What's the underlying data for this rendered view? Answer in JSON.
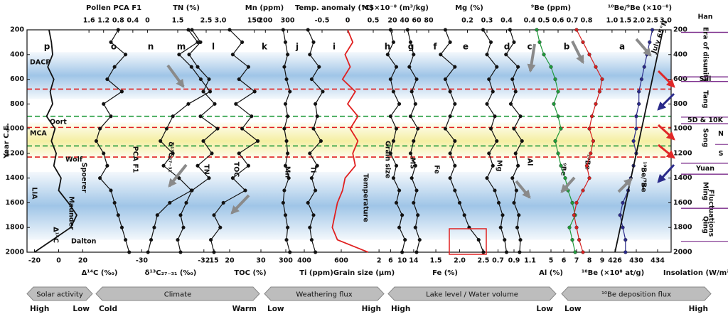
{
  "figure": {
    "ylabel": "Year C.E.",
    "ylim": [
      200,
      2000
    ],
    "yticks": [
      200,
      400,
      600,
      800,
      1000,
      1200,
      1400,
      1600,
      1800,
      2000
    ],
    "years": [
      200,
      300,
      400,
      500,
      600,
      700,
      800,
      900,
      1000,
      1100,
      1200,
      1300,
      1400,
      1500,
      1600,
      1700,
      1800,
      1900,
      2000
    ],
    "bands": [
      {
        "start": 380,
        "end": 760,
        "color": "#8fbbe3"
      },
      {
        "start": 950,
        "end": 1250,
        "color": "#f3ec93"
      },
      {
        "start": 1350,
        "end": 1900,
        "color": "#8fbbe3"
      }
    ],
    "dashed_lines": [
      {
        "year": 680,
        "color": "#e02020"
      },
      {
        "year": 900,
        "color": "#1f9a3a"
      },
      {
        "year": 990,
        "color": "#e02020"
      },
      {
        "year": 1140,
        "color": "#1f9a3a"
      },
      {
        "year": 1230,
        "color": "#e02020"
      }
    ],
    "annotations": [
      "DACP",
      "MCA",
      "Oort",
      "Wolf",
      "Spoerer",
      "Maunder",
      "Dalton",
      "LIA",
      "Fluctuations",
      "July 65°N",
      "?"
    ],
    "eras": [
      {
        "name": "Han",
        "start": -25,
        "end": 220
      },
      {
        "name": "Era of disunity",
        "start": 220,
        "end": 581
      },
      {
        "name": "Sui",
        "start": 581,
        "end": 618
      },
      {
        "name": "Tang",
        "start": 618,
        "end": 907
      },
      {
        "name": "5D & 10K",
        "start": 907,
        "end": 960
      },
      {
        "name": "Song",
        "start": 960,
        "end": 1279,
        "parts": [
          {
            "name": "N",
            "start": 960,
            "end": 1127
          },
          {
            "name": "S",
            "start": 1127,
            "end": 1279
          }
        ]
      },
      {
        "name": "Yuan",
        "start": 1279,
        "end": 1368
      },
      {
        "name": "Ming",
        "start": 1368,
        "end": 1644
      },
      {
        "name": "Qing",
        "start": 1644,
        "end": 1912
      }
    ],
    "flux": [
      {
        "name": "Solar activity",
        "left": "High",
        "right": "Low"
      },
      {
        "name": "Climate",
        "left": "Cold",
        "right": "Warm"
      },
      {
        "name": "Weathering flux",
        "left": "Low",
        "right": "High"
      },
      {
        "name": "Lake level / Water volume",
        "left": "High",
        "right": "Low"
      },
      {
        "name": "¹⁰Be deposition flux",
        "left": "Low",
        "right": "High"
      }
    ]
  },
  "chart_data": [
    {
      "type": "line",
      "letter": "p",
      "label": "Δ¹⁴C",
      "axis_title": "Δ¹⁴C (‰)",
      "axis_side": "bottom",
      "xlim": [
        -25,
        25
      ],
      "xticks": [
        -20,
        0,
        20
      ],
      "color": "#111111",
      "markers": false,
      "values": [
        -8,
        -6,
        -5,
        -9,
        -4,
        -7,
        -5,
        -10,
        -3,
        -6,
        -2,
        -4,
        2,
        0,
        8,
        15,
        10,
        -5,
        -20
      ]
    },
    {
      "type": "line",
      "letter": "o",
      "label": "PCA F1",
      "axis_title": "Pollen PCA F1",
      "axis_side": "top",
      "xlim": [
        1.7,
        -0.05
      ],
      "xticks": [
        1.6,
        1.2,
        0.8,
        0.4,
        0
      ],
      "color": "#111111",
      "markers": true,
      "values": [
        0.8,
        1.0,
        0.6,
        0.9,
        1.1,
        0.7,
        1.2,
        1.0,
        1.3,
        1.4,
        1.2,
        1.1,
        1.3,
        1.0,
        0.9,
        0.8,
        0.7,
        0.6,
        0.5
      ]
    },
    {
      "type": "line",
      "letter": "n",
      "label": "δ¹³C₂₇₋₃₁",
      "axis_title": "δ¹³C₂₇₋₃₁ (‰)",
      "axis_side": "bottom",
      "xlim": [
        -29.6,
        -32.6
      ],
      "xticks": [
        -30,
        -32
      ],
      "color": "#111111",
      "markers": true,
      "values": [
        -31.5,
        -31.8,
        -31.2,
        -31.6,
        -31.9,
        -32.2,
        -31.5,
        -31.0,
        -30.8,
        -30.6,
        -31.0,
        -30.7,
        -31.2,
        -31.6,
        -30.9,
        -30.5,
        -30.4,
        -30.3,
        -30.2
      ]
    },
    {
      "type": "line",
      "letter": "m",
      "label": "TN",
      "axis_title": "TN (%)",
      "axis_side": "top",
      "xlim": [
        0.9,
        3.4
      ],
      "xticks": [
        1.5,
        2.5,
        {
          "value": 3,
          "label": "3.0"
        }
      ],
      "color": "#111111",
      "markers": true,
      "values": [
        2.0,
        2.3,
        1.9,
        2.2,
        2.6,
        2.4,
        2.8,
        2.3,
        2.9,
        2.4,
        2.7,
        2.2,
        2.6,
        2.0,
        1.8,
        1.6,
        1.7,
        1.5,
        1.6
      ]
    },
    {
      "type": "line",
      "letter": "l",
      "label": "TOC",
      "axis_title": "TOC (%)",
      "axis_side": "bottom",
      "xlim": [
        10,
        35
      ],
      "xticks": [
        15,
        20,
        30
      ],
      "color": "#111111",
      "markers": true,
      "values": [
        20,
        24,
        21,
        26,
        23,
        28,
        22,
        27,
        24,
        29,
        23,
        26,
        21,
        25,
        18,
        15,
        17,
        14,
        15
      ]
    },
    {
      "type": "line",
      "letter": "k",
      "label": "Mn",
      "axis_title": "Mn (ppm)",
      "axis_side": "top",
      "xlim": [
        100,
        330
      ],
      "xticks": [
        150,
        200,
        300
      ],
      "color": "#111111",
      "markers": true,
      "values": [
        280,
        290,
        300,
        285,
        295,
        310,
        290,
        300,
        285,
        295,
        300,
        290,
        305,
        285,
        280,
        290,
        300,
        295,
        310
      ]
    },
    {
      "type": "line",
      "letter": "j",
      "label": "Ti",
      "axis_title": "Ti (ppm)",
      "axis_side": "bottom",
      "xlim": [
        250,
        650
      ],
      "xticks": [
        300,
        400,
        600
      ],
      "color": "#111111",
      "markers": true,
      "values": [
        420,
        450,
        430,
        480,
        440,
        500,
        460,
        470,
        450,
        490,
        430,
        470,
        440,
        460,
        420,
        450,
        430,
        440,
        460
      ]
    },
    {
      "type": "line",
      "letter": "i",
      "label": "Temperature",
      "axis_title": "Temp. anomaly (°C)",
      "axis_side": "top",
      "xlim": [
        -0.75,
        0.75
      ],
      "xticks": [
        -0.5,
        0,
        0.5
      ],
      "color": "#e02020",
      "markers": false,
      "values": [
        0,
        0.1,
        -0.05,
        0.05,
        -0.1,
        0.15,
        0,
        0.2,
        0.05,
        0.2,
        0.1,
        0.15,
        -0.05,
        -0.1,
        -0.2,
        -0.25,
        -0.3,
        -0.2,
        0.4
      ]
    },
    {
      "type": "line",
      "letter": "h",
      "label": "Grain size",
      "axis_title": "Grain size (µm)",
      "axis_side": "bottom",
      "xlim": [
        0,
        16
      ],
      "xticks": [
        2,
        6,
        10,
        14
      ],
      "color": "#111111",
      "markers": true,
      "values": [
        6,
        7,
        5,
        8,
        6,
        7,
        9,
        6,
        8,
        7,
        6,
        8,
        7,
        9,
        8,
        10,
        9,
        11,
        10
      ]
    },
    {
      "type": "line",
      "letter": "g",
      "label": "MS",
      "axis_title": "MS×10⁻⁸ (m³/kg)",
      "axis_side": "top",
      "xlim": [
        0,
        100
      ],
      "xticks": [
        20,
        40,
        60,
        80
      ],
      "color": "#111111",
      "markers": true,
      "values": [
        45,
        50,
        55,
        48,
        60,
        52,
        58,
        50,
        62,
        55,
        50,
        58,
        52,
        60,
        55,
        62,
        58,
        65,
        60
      ]
    },
    {
      "type": "line",
      "letter": "f",
      "label": "Fe",
      "axis_title": "Fe (%)",
      "axis_side": "bottom",
      "xlim": [
        1.2,
        2.8
      ],
      "xticks": [
        1.5,
        {
          "value": 2,
          "label": "2.0"
        },
        2.5
      ],
      "color": "#111111",
      "markers": true,
      "values": [
        1.7,
        1.8,
        1.6,
        1.9,
        1.7,
        1.8,
        1.9,
        1.8,
        1.7,
        1.9,
        1.8,
        1.9,
        1.8,
        1.9,
        2.0,
        2.1,
        2.2,
        2.4,
        2.5
      ]
    },
    {
      "type": "line",
      "letter": "e",
      "label": "Mg",
      "axis_title": "Mg (%)",
      "axis_side": "top",
      "xlim": [
        0.1,
        0.5
      ],
      "xticks": [
        0.2,
        0.3,
        0.4
      ],
      "color": "#111111",
      "markers": true,
      "values": [
        0.28,
        0.32,
        0.3,
        0.35,
        0.31,
        0.33,
        0.3,
        0.34,
        0.32,
        0.35,
        0.31,
        0.33,
        0.3,
        0.34,
        0.36,
        0.38,
        0.37,
        0.39,
        0.4
      ]
    },
    {
      "type": "line",
      "letter": "d",
      "label": "Al",
      "axis_title": "Al (%)",
      "axis_side": "bottom",
      "xlim": [
        0.5,
        1.3
      ],
      "xticks": [
        0.7,
        0.9,
        1.1
      ],
      "color": "#111111",
      "markers": true,
      "values": [
        0.85,
        0.9,
        0.8,
        0.95,
        0.88,
        0.92,
        0.86,
        0.98,
        0.9,
        1.0,
        0.92,
        0.95,
        0.88,
        0.93,
        0.9,
        0.96,
        0.94,
        0.98,
        0.97
      ]
    },
    {
      "type": "line",
      "letter": "c",
      "label": "⁹Be",
      "axis_title": "⁹Be (ppm)",
      "axis_side": "top",
      "xlim": [
        0.3,
        0.9
      ],
      "xticks": [
        0.4,
        0.5,
        0.6,
        0.7,
        0.8
      ],
      "color": "#1f9a3a",
      "markers": true,
      "values": [
        0.45,
        0.47,
        0.5,
        0.55,
        0.58,
        0.6,
        0.57,
        0.6,
        0.62,
        0.58,
        0.6,
        0.62,
        0.65,
        0.67,
        0.7,
        0.72,
        0.68,
        0.7,
        0.72
      ]
    },
    {
      "type": "line",
      "letter": "b",
      "label": "¹⁰Be",
      "axis_title": "¹⁰Be (×10⁸ at/g)",
      "axis_side": "bottom",
      "xlim": [
        4,
        10
      ],
      "xticks": [
        5,
        6,
        7,
        8,
        9
      ],
      "color": "#d62020",
      "markers": true,
      "values": [
        7,
        7.5,
        8,
        8.5,
        9,
        8.8,
        8.5,
        8.2,
        8,
        8.3,
        8.1,
        7.8,
        8,
        7.5,
        7,
        6.8,
        7,
        7.2,
        7.5
      ]
    },
    {
      "type": "line",
      "letter": "a",
      "label": "¹⁰Be/⁹Be",
      "axis_title": "¹⁰Be/⁹Be (×10⁻⁸)",
      "axis_side": "top",
      "xlim": [
        0.5,
        3.2
      ],
      "xticks": [
        {
          "value": 1,
          "label": "1.0"
        },
        1.5,
        {
          "value": 2,
          "label": "2.0"
        },
        2.5,
        {
          "value": 3,
          "label": "3.0"
        }
      ],
      "color": "#2a2a8a",
      "markers": true,
      "values": [
        2.5,
        2.4,
        2.3,
        2.2,
        2.1,
        2.0,
        2.0,
        1.9,
        1.9,
        1.8,
        1.9,
        1.8,
        1.7,
        1.6,
        1.4,
        1.3,
        1.4,
        1.5,
        1.5
      ]
    },
    {
      "type": "line",
      "axis_title": "Insolation (W/m²)",
      "axis_side": "bottom",
      "xlim": [
        424,
        436
      ],
      "xticks": [
        426,
        430,
        434
      ],
      "color": "#111111",
      "markers": false,
      "values": [
        435,
        434.5,
        434,
        433.5,
        433,
        432.5,
        432,
        431.5,
        431,
        430.5,
        430,
        429.5,
        429,
        428.5,
        428,
        427.5,
        427,
        426.5,
        426
      ]
    }
  ]
}
